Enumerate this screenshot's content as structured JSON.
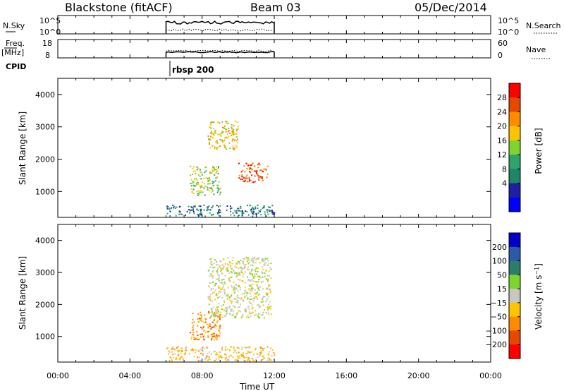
{
  "header": {
    "station": "Blackstone (fitACF)",
    "beam": "Beam 03",
    "date": "05/Dec/2014"
  },
  "summary_panels": {
    "nsky_label": "N.Sky",
    "nsky_ticks": [
      "10^5",
      "10^0"
    ],
    "nsearch_label": "N.Search",
    "freq_label": "Freq.",
    "freq_unit": "[MHz]",
    "freq_ticks": [
      "18",
      "8"
    ],
    "nave_ticks": [
      "60",
      "0"
    ],
    "nave_label": "Nave",
    "cpid_label": "CPID",
    "cpid_value": "rbsp 200"
  },
  "chart_data": {
    "type": "heatmap",
    "x_ticks": [
      "00:00",
      "04:00",
      "08:00",
      "12:00",
      "16:00",
      "20:00",
      "00:00"
    ],
    "x_range_hours": [
      0,
      24
    ],
    "x_label": "Time UT",
    "data_time_range_hours": [
      6,
      12
    ],
    "panels": [
      {
        "name": "power",
        "y_label": "Slant Range [km]",
        "y_ticks": [
          1000,
          2000,
          3000,
          4000
        ],
        "y_range": [
          200,
          4500
        ],
        "colorbar_label": "Power [dB]",
        "colorbar_ticks": [
          "28",
          "24",
          "20",
          "16",
          "12",
          "8",
          "4"
        ],
        "colorbar_colors": [
          "#ff0000",
          "#e64800",
          "#ff8c00",
          "#ffc400",
          "#7fd42f",
          "#2ea36b",
          "#1f8566",
          "#1f1fa3",
          "#0000ff"
        ],
        "features": [
          {
            "hours": [
              6.0,
              12.0
            ],
            "range_km": [
              250,
              600
            ],
            "power_db": 6
          },
          {
            "hours": [
              7.3,
              9.0
            ],
            "range_km": [
              900,
              1800
            ],
            "power_db": 14
          },
          {
            "hours": [
              8.3,
              10.0
            ],
            "range_km": [
              2300,
              3200
            ],
            "power_db": 18
          },
          {
            "hours": [
              10.0,
              11.6
            ],
            "range_km": [
              1300,
              1900
            ],
            "power_db": 26
          }
        ]
      },
      {
        "name": "velocity",
        "y_label": "Slant Range [km]",
        "y_ticks": [
          1000,
          2000,
          3000,
          4000
        ],
        "y_range": [
          200,
          4500
        ],
        "colorbar_label": "Velocity [m s^-1]",
        "colorbar_ticks": [
          "200",
          "100",
          "50",
          "15",
          "-15",
          "-50",
          "-100",
          "-200"
        ],
        "colorbar_colors": [
          "#0000c8",
          "#2a5aa8",
          "#2e7d6a",
          "#7fd42f",
          "#c8c8c0",
          "#ffc400",
          "#ff8c00",
          "#e64800",
          "#ff0000"
        ],
        "features": [
          {
            "hours": [
              6.0,
              12.0
            ],
            "range_km": [
              250,
              700
            ],
            "velocity_ms": -40
          },
          {
            "hours": [
              7.3,
              9.0
            ],
            "range_km": [
              900,
              1800
            ],
            "velocity_ms": -90
          },
          {
            "hours": [
              8.3,
              11.8
            ],
            "range_km": [
              1600,
              3500
            ],
            "velocity_ms": 0
          }
        ]
      }
    ]
  }
}
